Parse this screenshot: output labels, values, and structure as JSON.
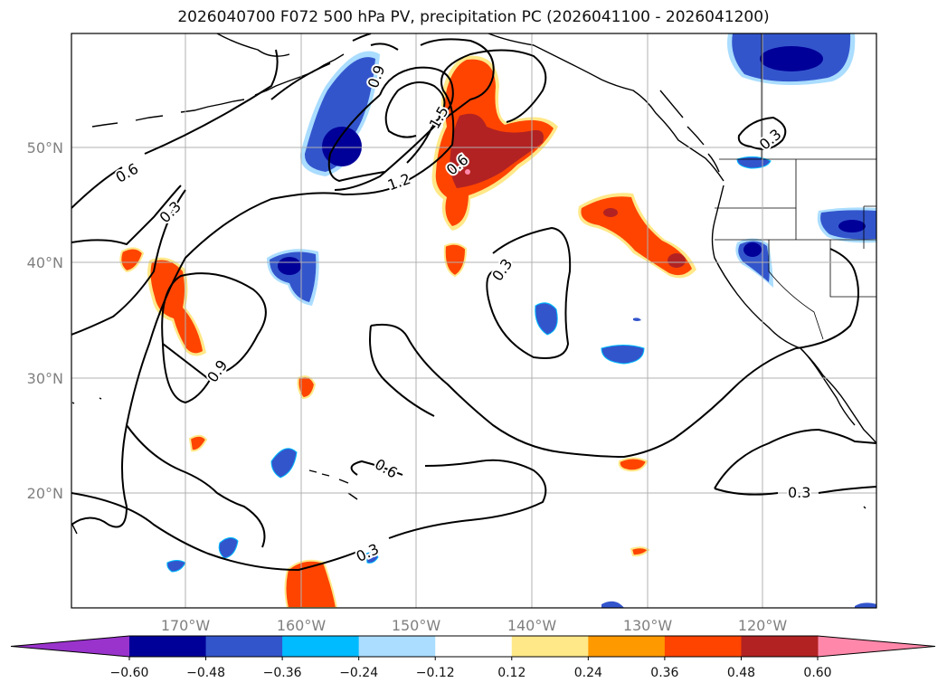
{
  "title": "2026040700 F072 500 hPa PV, precipitation PC (2026041100 - 2026041200)",
  "lat_labels": [
    "50°N",
    "40°N",
    "30°N",
    "20°N"
  ],
  "lon_labels": [
    "170°W",
    "160°W",
    "150°W",
    "140°W",
    "130°W",
    "120°W"
  ],
  "contour_labels": [
    "0.6",
    "0.3",
    "0.9",
    "1.2",
    "1.5",
    "0.6",
    "0.9",
    "0.3",
    "0.3",
    "0.6",
    "0.3",
    "0.3"
  ],
  "colorbar": {
    "ticks": [
      "−0.60",
      "−0.48",
      "−0.36",
      "−0.24",
      "−0.12",
      "0.12",
      "0.24",
      "0.36",
      "0.48",
      "0.60"
    ],
    "colors": [
      "#9933cc",
      "#000099",
      "#3355cc",
      "#00bbff",
      "#aaddff",
      "#ffffff",
      "#ffe888",
      "#ff9900",
      "#ff4400",
      "#b22222",
      "#ff88aa"
    ]
  }
}
